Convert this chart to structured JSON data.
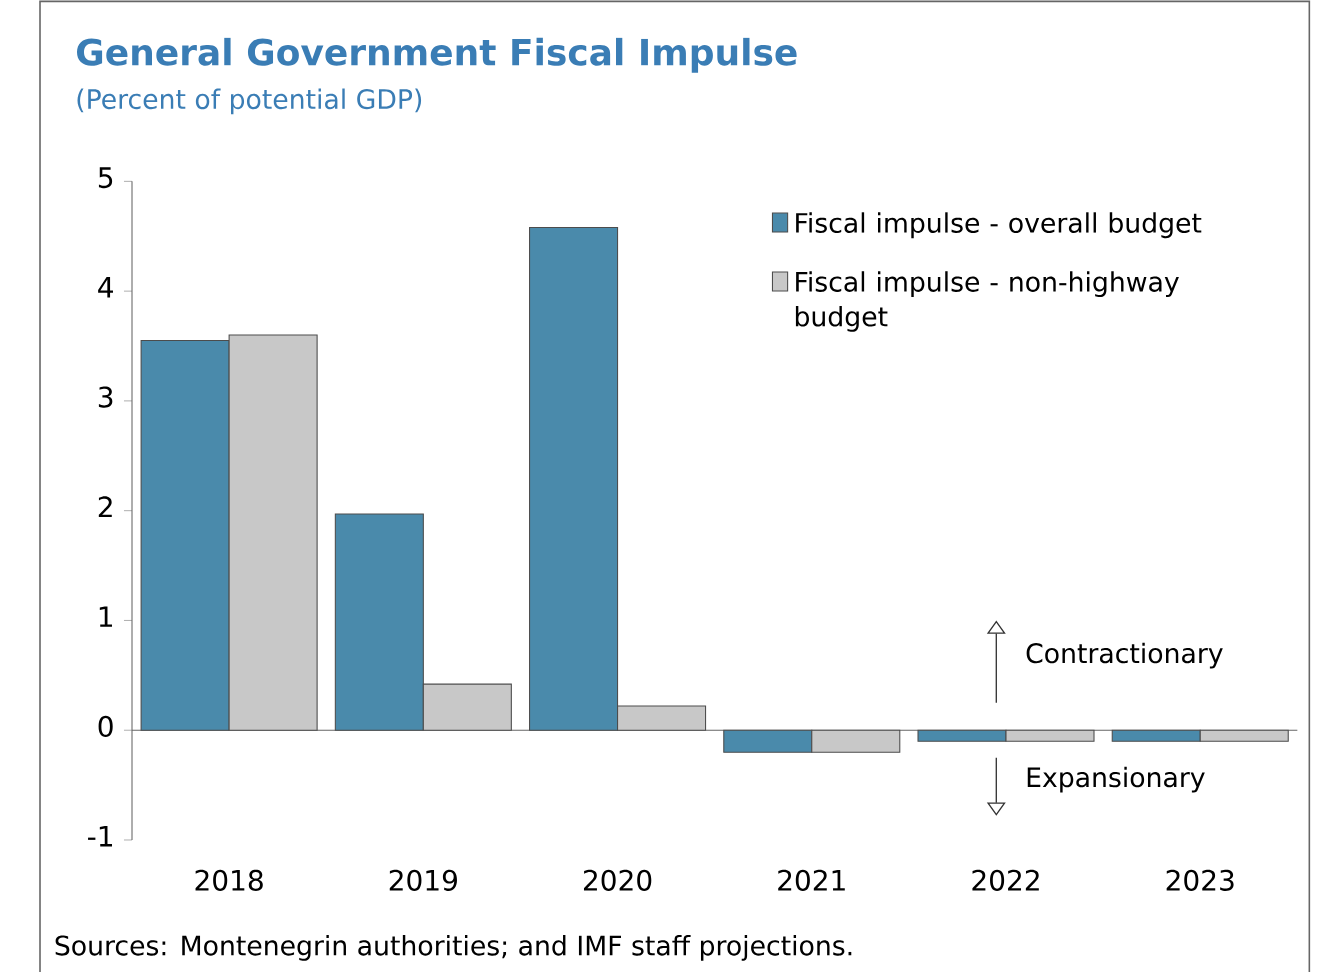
{
  "chart_data": {
    "type": "bar",
    "title": "General Government Fiscal Impulse",
    "subtitle": "(Percent of potential GDP)",
    "categories": [
      "2018",
      "2019",
      "2020",
      "2021",
      "2022",
      "2023"
    ],
    "series": [
      {
        "name": "Fiscal impulse - overall budget",
        "color": "#4a8aab",
        "values": [
          3.55,
          1.97,
          4.58,
          -0.2,
          -0.1,
          -0.1
        ]
      },
      {
        "name": "Fiscal impulse - non-highway budget",
        "color": "#c8c8c8",
        "values": [
          3.6,
          0.42,
          0.22,
          -0.2,
          -0.1,
          -0.1
        ]
      }
    ],
    "ylim": [
      -1,
      5
    ],
    "yticks": [
      -1,
      0,
      1,
      2,
      3,
      4,
      5
    ],
    "legend": "top right",
    "annotations": [
      "Contractionary",
      "Expansionary",
      "Sources: Montenegrin authorities; and IMF staff projections."
    ]
  }
}
